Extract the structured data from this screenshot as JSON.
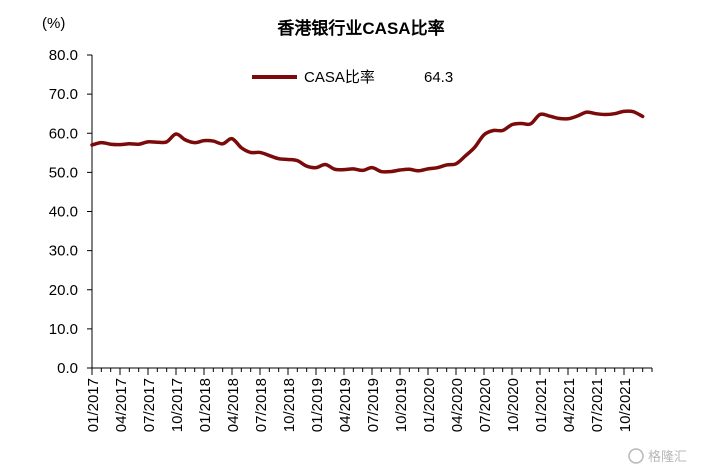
{
  "chart_data": {
    "type": "line",
    "title": "香港银行业CASA比率",
    "ylabel": "(%)",
    "ylim": [
      0,
      80
    ],
    "yticks": [
      "0.0",
      "10.0",
      "20.0",
      "30.0",
      "40.0",
      "50.0",
      "60.0",
      "70.0",
      "80.0"
    ],
    "xticks": [
      "01/2017",
      "04/2017",
      "07/2017",
      "10/2017",
      "01/2018",
      "04/2018",
      "07/2018",
      "10/2018",
      "01/2019",
      "04/2019",
      "07/2019",
      "10/2019",
      "01/2020",
      "04/2020",
      "07/2020",
      "10/2020",
      "01/2021",
      "04/2021",
      "07/2021",
      "10/2021"
    ],
    "grid": false,
    "legend": "top-center",
    "series": [
      {
        "name": "CASA比率",
        "color": "#7b0a0a",
        "latest_value": "64.3",
        "x": [
          "01/2017",
          "02/2017",
          "03/2017",
          "04/2017",
          "05/2017",
          "06/2017",
          "07/2017",
          "08/2017",
          "09/2017",
          "10/2017",
          "11/2017",
          "12/2017",
          "01/2018",
          "02/2018",
          "03/2018",
          "04/2018",
          "05/2018",
          "06/2018",
          "07/2018",
          "08/2018",
          "09/2018",
          "10/2018",
          "11/2018",
          "12/2018",
          "01/2019",
          "02/2019",
          "03/2019",
          "04/2019",
          "05/2019",
          "06/2019",
          "07/2019",
          "08/2019",
          "09/2019",
          "10/2019",
          "11/2019",
          "12/2019",
          "01/2020",
          "02/2020",
          "03/2020",
          "04/2020",
          "05/2020",
          "06/2020",
          "07/2020",
          "08/2020",
          "09/2020",
          "10/2020",
          "11/2020",
          "12/2020",
          "01/2021",
          "02/2021",
          "03/2021",
          "04/2021",
          "05/2021",
          "06/2021",
          "07/2021",
          "08/2021",
          "09/2021",
          "10/2021",
          "11/2021",
          "12/2021"
        ],
        "values": [
          57.0,
          57.6,
          57.2,
          57.1,
          57.3,
          57.2,
          57.8,
          57.7,
          57.8,
          59.8,
          58.3,
          57.6,
          58.1,
          58.0,
          57.3,
          58.6,
          56.3,
          55.1,
          55.1,
          54.3,
          53.5,
          53.3,
          53.0,
          51.6,
          51.2,
          52.0,
          50.8,
          50.7,
          50.9,
          50.5,
          51.2,
          50.2,
          50.2,
          50.6,
          50.8,
          50.4,
          50.9,
          51.2,
          51.9,
          52.2,
          54.2,
          56.4,
          59.6,
          60.7,
          60.7,
          62.2,
          62.5,
          62.4,
          64.8,
          64.4,
          63.8,
          63.7,
          64.4,
          65.4,
          65.0,
          64.8,
          65.0,
          65.6,
          65.5,
          64.3
        ]
      }
    ]
  },
  "watermark": "格隆汇"
}
